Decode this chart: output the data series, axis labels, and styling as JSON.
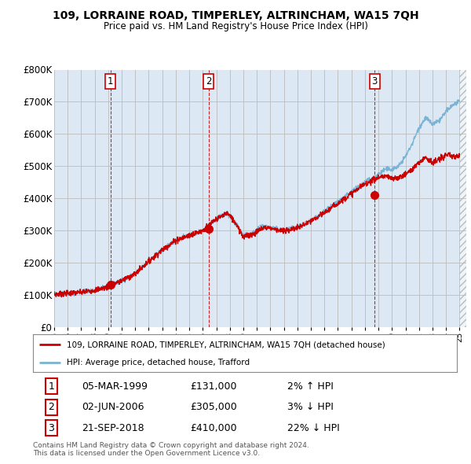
{
  "title": "109, LORRAINE ROAD, TIMPERLEY, ALTRINCHAM, WA15 7QH",
  "subtitle": "Price paid vs. HM Land Registry's House Price Index (HPI)",
  "ylim": [
    0,
    800000
  ],
  "yticks": [
    0,
    100000,
    200000,
    300000,
    400000,
    500000,
    600000,
    700000,
    800000
  ],
  "ytick_labels": [
    "£0",
    "£100K",
    "£200K",
    "£300K",
    "£400K",
    "£500K",
    "£600K",
    "£700K",
    "£800K"
  ],
  "hpi_color": "#7ab3d4",
  "price_color": "#cc0000",
  "marker_color": "#cc0000",
  "vline_color": "#cc0000",
  "grid_color": "#bbbbbb",
  "plot_bg_color": "#dce9f5",
  "background_color": "#ffffff",
  "hatch_color": "#cccccc",
  "xmin": 1995,
  "xmax": 2025.5,
  "hatch_start": 2025.0,
  "transactions": [
    {
      "date_num": 1999.17,
      "price": 131000,
      "label": "1",
      "date_str": "05-MAR-1999",
      "pct": "2%",
      "dir": "↑"
    },
    {
      "date_num": 2006.42,
      "price": 305000,
      "label": "2",
      "date_str": "02-JUN-2006",
      "pct": "3%",
      "dir": "↓"
    },
    {
      "date_num": 2018.72,
      "price": 410000,
      "label": "3",
      "date_str": "21-SEP-2018",
      "pct": "22%",
      "dir": "↓"
    }
  ],
  "legend_house_label": "109, LORRAINE ROAD, TIMPERLEY, ALTRINCHAM, WA15 7QH (detached house)",
  "legend_hpi_label": "HPI: Average price, detached house, Trafford",
  "footer_line1": "Contains HM Land Registry data © Crown copyright and database right 2024.",
  "footer_line2": "This data is licensed under the Open Government Licence v3.0.",
  "table_rows": [
    [
      "1",
      "05-MAR-1999",
      "£131,000",
      "2% ↑ HPI"
    ],
    [
      "2",
      "02-JUN-2006",
      "£305,000",
      "3% ↓ HPI"
    ],
    [
      "3",
      "21-SEP-2018",
      "£410,000",
      "22% ↓ HPI"
    ]
  ]
}
